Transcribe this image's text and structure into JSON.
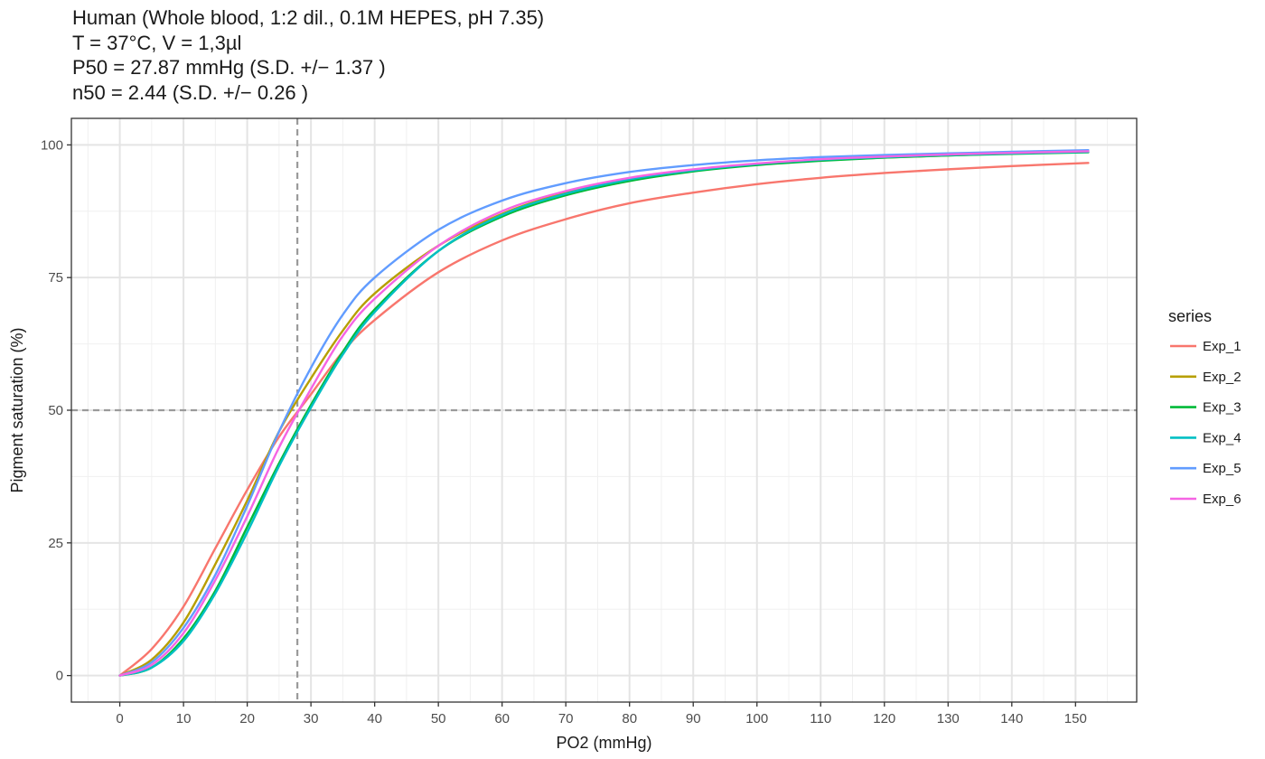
{
  "title_lines": [
    "Human (Whole blood, 1:2 dil., 0.1M HEPES, pH 7.35)",
    "T = 37°C, V = 1,3µl",
    "P50 = 27.87 mmHg (S.D. +/− 1.37 )",
    "n50 = 2.44 (S.D. +/− 0.26 )"
  ],
  "chart_data": {
    "type": "line",
    "title": "Human (Whole blood, 1:2 dil., 0.1M HEPES, pH 7.35)",
    "subtitle_lines": [
      "T = 37°C, V = 1,3µl",
      "P50 = 27.87 mmHg (S.D. +/− 1.37 )",
      "n50 = 2.44 (S.D. +/− 0.26 )"
    ],
    "xlabel": "PO2 (mmHg)",
    "ylabel": "Pigment saturation (%)",
    "xlim": [
      -7.6,
      159.6
    ],
    "ylim": [
      -5,
      105
    ],
    "x_ticks": [
      0,
      10,
      20,
      30,
      40,
      50,
      60,
      70,
      80,
      90,
      100,
      110,
      120,
      130,
      140,
      150
    ],
    "x_tick_labels": [
      "0",
      "10",
      "20",
      "30",
      "40",
      "50",
      "60",
      "70",
      "80",
      "90",
      "100",
      "110",
      "120",
      "130",
      "140",
      "150"
    ],
    "y_ticks": [
      0,
      25,
      50,
      75,
      100
    ],
    "y_tick_labels": [
      "0",
      "25",
      "50",
      "75",
      "100"
    ],
    "grid": true,
    "x_range_data": [
      0,
      152
    ],
    "reference_lines": {
      "vertical_x": 27.87,
      "horizontal_y": 50
    },
    "legend_title": "series",
    "legend_position": "right",
    "series": [
      {
        "name": "Exp_1",
        "color": "#F8766D",
        "x": [
          0,
          5,
          10,
          15,
          20,
          25,
          30,
          35,
          40,
          50,
          60,
          70,
          80,
          90,
          100,
          110,
          120,
          130,
          140,
          152
        ],
        "y": [
          0,
          5,
          13,
          24,
          35,
          45,
          53,
          61,
          67,
          76,
          82,
          86,
          89,
          91,
          92.6,
          93.8,
          94.7,
          95.4,
          96,
          96.6
        ]
      },
      {
        "name": "Exp_2",
        "color": "#B79F00",
        "x": [
          0,
          5,
          10,
          15,
          20,
          25,
          30,
          35,
          40,
          50,
          60,
          70,
          80,
          90,
          100,
          110,
          120,
          130,
          140,
          152
        ],
        "y": [
          0,
          3,
          10,
          21,
          33,
          46,
          56,
          65,
          72,
          81,
          87,
          91,
          93.5,
          95.2,
          96.3,
          97.1,
          97.6,
          98,
          98.4,
          98.7
        ]
      },
      {
        "name": "Exp_3",
        "color": "#00BA38",
        "x": [
          0,
          5,
          10,
          15,
          20,
          25,
          30,
          35,
          40,
          50,
          60,
          70,
          80,
          90,
          100,
          110,
          120,
          130,
          140,
          152
        ],
        "y": [
          0,
          1.5,
          7,
          16,
          28,
          40,
          51,
          61,
          69,
          80,
          86.5,
          90.5,
          93.2,
          95,
          96.2,
          97,
          97.6,
          98,
          98.3,
          98.6
        ]
      },
      {
        "name": "Exp_4",
        "color": "#00BFC4",
        "x": [
          0,
          5,
          10,
          15,
          20,
          25,
          30,
          35,
          40,
          50,
          60,
          70,
          80,
          90,
          100,
          110,
          120,
          130,
          140,
          152
        ],
        "y": [
          0,
          1.5,
          6.5,
          15.5,
          27,
          39.5,
          50.5,
          60.5,
          68.5,
          80,
          86.8,
          90.8,
          93.5,
          95.2,
          96.4,
          97.2,
          97.7,
          98.1,
          98.4,
          98.7
        ]
      },
      {
        "name": "Exp_5",
        "color": "#619CFF",
        "x": [
          0,
          5,
          10,
          15,
          20,
          25,
          30,
          35,
          40,
          50,
          60,
          70,
          80,
          90,
          100,
          110,
          120,
          130,
          140,
          152
        ],
        "y": [
          0,
          2.5,
          9,
          19,
          32,
          46,
          58,
          68,
          75,
          84,
          89.5,
          92.8,
          94.9,
          96.2,
          97.1,
          97.7,
          98.1,
          98.4,
          98.7,
          99
        ]
      },
      {
        "name": "Exp_6",
        "color": "#F564E3",
        "x": [
          0,
          5,
          10,
          15,
          20,
          25,
          30,
          35,
          40,
          50,
          60,
          70,
          80,
          90,
          100,
          110,
          120,
          130,
          140,
          152
        ],
        "y": [
          0,
          2,
          8,
          18,
          30,
          43,
          54,
          64,
          71,
          81,
          87.5,
          91.3,
          93.8,
          95.4,
          96.5,
          97.3,
          97.8,
          98.2,
          98.5,
          98.8
        ]
      }
    ]
  }
}
